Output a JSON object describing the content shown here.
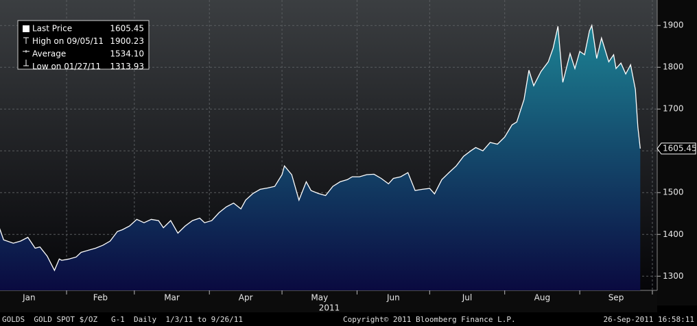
{
  "chart_data": {
    "type": "area",
    "x": [
      4,
      6,
      10,
      13,
      16,
      19,
      21,
      24,
      27,
      29,
      30,
      33,
      36,
      38,
      41,
      44,
      47,
      50,
      53,
      55,
      58,
      61,
      64,
      67,
      70,
      72,
      75,
      78,
      81,
      84,
      87,
      89,
      92,
      95,
      98,
      101,
      104,
      106,
      109,
      112,
      115,
      118,
      121,
      122,
      125,
      128,
      131,
      133,
      136,
      139,
      142,
      145,
      148,
      150,
      153,
      156,
      159,
      162,
      165,
      167,
      170,
      173,
      176,
      179,
      182,
      184,
      187,
      190,
      193,
      196,
      199,
      201,
      204,
      207,
      210,
      213,
      216,
      218,
      221,
      223,
      225,
      228,
      231,
      233,
      235,
      237,
      240,
      242,
      244,
      246,
      248,
      249,
      251,
      253,
      256,
      258,
      259,
      261,
      263,
      265,
      267,
      268,
      269
    ],
    "values": [
      1420,
      1387,
      1379,
      1384,
      1393,
      1367,
      1370,
      1348,
      1313.93,
      1341,
      1338,
      1341,
      1346,
      1357,
      1362,
      1367,
      1374,
      1384,
      1407,
      1411,
      1420,
      1436,
      1428,
      1436,
      1433,
      1416,
      1433,
      1403,
      1420,
      1433,
      1439,
      1428,
      1433,
      1452,
      1466,
      1475,
      1461,
      1482,
      1498,
      1508,
      1511,
      1515,
      1543,
      1564,
      1543,
      1482,
      1526,
      1505,
      1498,
      1493,
      1515,
      1526,
      1531,
      1538,
      1538,
      1543,
      1544,
      1534,
      1521,
      1534,
      1538,
      1548,
      1505,
      1508,
      1510,
      1497,
      1531,
      1548,
      1564,
      1587,
      1600,
      1608,
      1600,
      1620,
      1616,
      1633,
      1662,
      1669,
      1723,
      1793,
      1756,
      1790,
      1813,
      1846,
      1898,
      1764,
      1833,
      1797,
      1838,
      1830,
      1887,
      1900.23,
      1821,
      1870,
      1813,
      1830,
      1797,
      1810,
      1784,
      1806,
      1747,
      1657,
      1605.45
    ],
    "line_color": "#ffffff",
    "fill_top": "#1d8394",
    "fill_bottom": "#0a0a40",
    "xlim": [
      4.5,
      276
    ],
    "xticks": [
      {
        "value": 1,
        "label": "Jan"
      },
      {
        "value": 32,
        "label": "Feb"
      },
      {
        "value": 60,
        "label": "Mar"
      },
      {
        "value": 91,
        "label": "Apr"
      },
      {
        "value": 121,
        "label": "May"
      },
      {
        "value": 152,
        "label": "Jun"
      },
      {
        "value": 182,
        "label": "Jul"
      },
      {
        "value": 213,
        "label": "Aug"
      },
      {
        "value": 244,
        "label": "Sep"
      },
      {
        "value": 274,
        "label": ""
      }
    ],
    "year_label": "2011",
    "ylim": [
      1266,
      1961
    ],
    "yticks": [
      1300,
      1400,
      1500,
      1600,
      1700,
      1800,
      1900
    ],
    "grid": true,
    "last_label": "1605.45",
    "legend": [
      {
        "label": "Last Price",
        "value": "1605.45"
      },
      {
        "label": "High on 09/05/11",
        "value": "1900.23"
      },
      {
        "label": "Average",
        "value": "1534.10"
      },
      {
        "label": "Low on 01/27/11",
        "value": "1313.93"
      }
    ],
    "footer": {
      "left": "GOLDS  GOLD SPOT $/OZ   G-1  Daily  1/3/11 to 9/26/11",
      "center": "Copyright© 2011 Bloomberg Finance L.P.",
      "right": "26-Sep-2011 16:58:11"
    }
  }
}
